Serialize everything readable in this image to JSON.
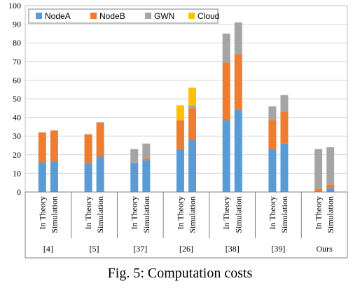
{
  "caption": "Fig. 5: Computation costs",
  "chart_data": {
    "type": "bar",
    "stacked": true,
    "title": "",
    "xlabel": "",
    "ylabel": "",
    "ylim": [
      0,
      100
    ],
    "yticks": [
      0,
      10,
      20,
      30,
      40,
      50,
      60,
      70,
      80,
      90,
      100
    ],
    "grid": true,
    "legend_position": "top-left",
    "groups": [
      "[4]",
      "[5]",
      "[37]",
      "[26]",
      "[38]",
      "[39]",
      "Ours"
    ],
    "bar_labels": [
      "In Theory",
      "Simulation"
    ],
    "series": [
      {
        "name": "NodeA",
        "color": "#5B9BD5",
        "values": [
          16,
          16.5,
          15.5,
          19,
          15.5,
          17,
          23,
          28,
          38.5,
          44,
          23,
          26,
          0,
          2
        ]
      },
      {
        "name": "NodeB",
        "color": "#ED7D31",
        "values": [
          16,
          16.5,
          15.5,
          18,
          0,
          1,
          15.5,
          17,
          31,
          30,
          15.5,
          17,
          1.5,
          2
        ]
      },
      {
        "name": "GWN",
        "color": "#A5A5A5",
        "values": [
          0,
          0,
          0,
          0.5,
          7.5,
          8,
          0,
          1.5,
          15.5,
          17,
          7.5,
          9,
          21.5,
          20
        ]
      },
      {
        "name": "Cloud",
        "color": "#FFC000",
        "values": [
          0,
          0,
          0,
          0,
          0,
          0,
          8,
          9.5,
          0,
          0,
          0,
          0,
          0,
          0
        ]
      }
    ]
  }
}
